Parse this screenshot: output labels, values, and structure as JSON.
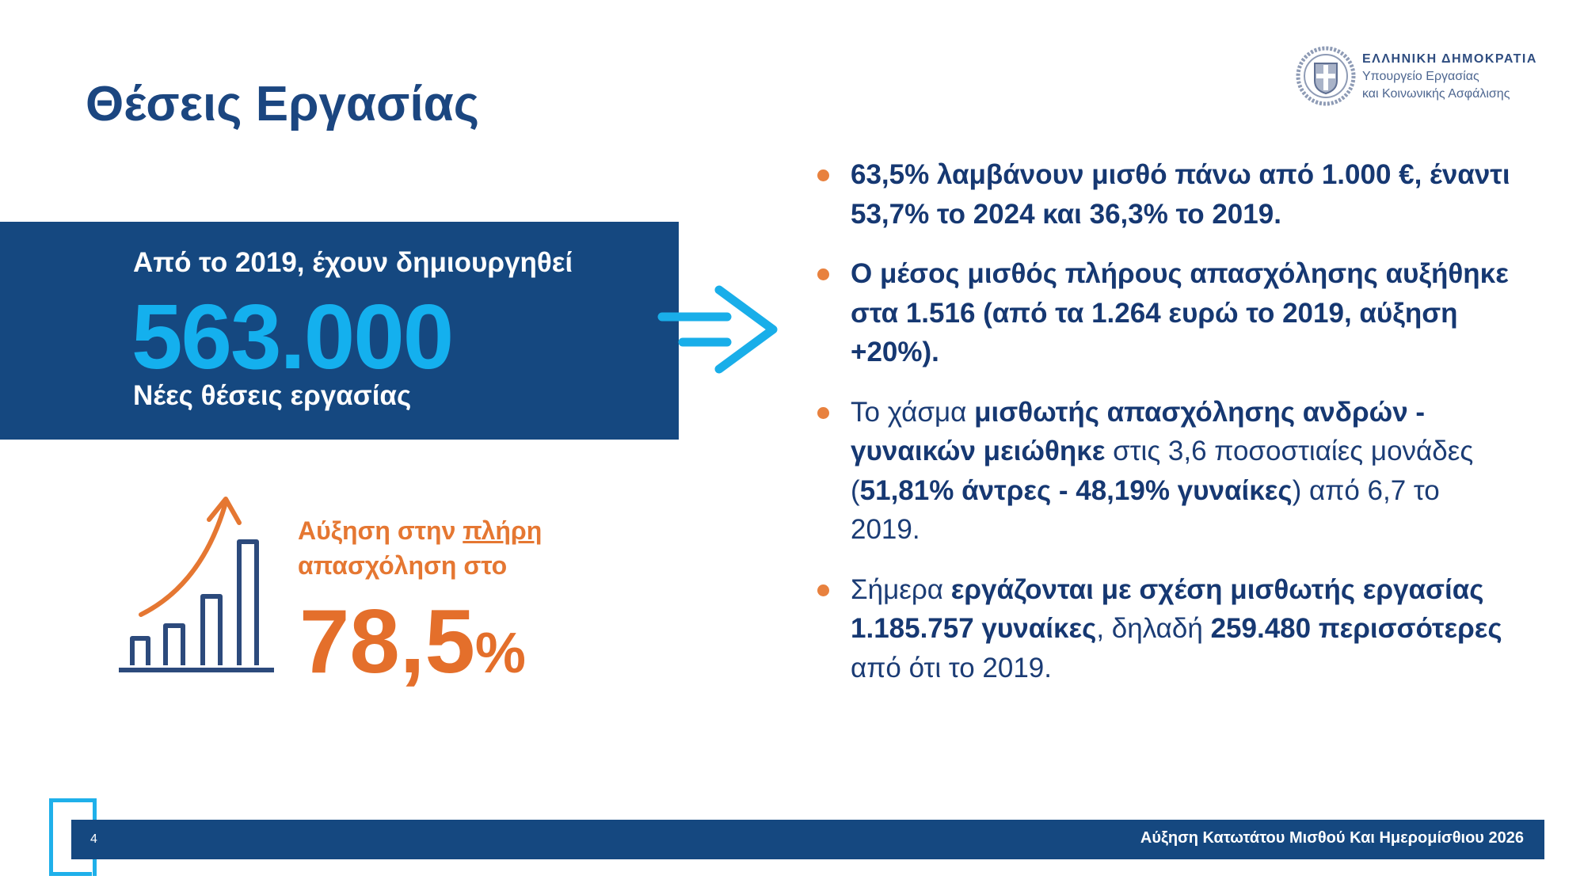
{
  "title": "Θέσεις Εργασίας",
  "logo": {
    "line1": "ΕΛΛΗΝΙΚΗ ΔΗΜΟΚΡΑΤΙΑ",
    "line2": "Υπουργείο Εργασίας",
    "line3": "και Κοινωνικής Ασφάλισης"
  },
  "jobs": {
    "intro": "Από το 2019, έχουν δημιουργηθεί",
    "number": "563.000",
    "caption": "Νέες θέσεις εργασίας"
  },
  "growth": {
    "label_start": "Αύξηση στην ",
    "label_underlined": "πλήρη",
    "label_end": "απασχόληση στο",
    "value": "78,5",
    "unit": "%"
  },
  "bullets": [
    {
      "parts": [
        {
          "text": "63,5% λαμβάνουν μισθό πάνω από 1.000 €, έναντι 53,7% το 2024 και 36,3% το 2019.",
          "bold": true
        }
      ]
    },
    {
      "parts": [
        {
          "text": "Ο μέσος μισθός πλήρους απασχόλησης αυξήθηκε στα 1.516 (από τα 1.264 ευρώ το 2019, αύξηση +20%).",
          "bold": true
        }
      ]
    },
    {
      "parts": [
        {
          "text": "Το χάσμα ",
          "bold": false
        },
        {
          "text": "μισθωτής απασχόλησης ανδρών - γυναικών μειώθηκε",
          "bold": true
        },
        {
          "text": " στις 3,6 ποσοστιαίες μονάδες (",
          "bold": false
        },
        {
          "text": "51,81% άντρες - 48,19% γυναίκες",
          "bold": true
        },
        {
          "text": ") από 6,7 το 2019.",
          "bold": false
        }
      ]
    },
    {
      "parts": [
        {
          "text": "Σήμερα ",
          "bold": false
        },
        {
          "text": "εργάζονται με σχέση μισθωτής εργασίας 1.185.757 γυναίκες",
          "bold": true
        },
        {
          "text": ", δηλαδή ",
          "bold": false
        },
        {
          "text": "259.480 περισσότερες",
          "bold": true
        },
        {
          "text": " από ότι το 2019.",
          "bold": false
        }
      ]
    }
  ],
  "footer": {
    "page_number": "4",
    "title": "Αύξηση Κατωτάτου Μισθού Και Ημερομίσθιου 2026"
  },
  "colors": {
    "navy": "#154880",
    "cyan": "#14b0ee",
    "orange": "#e46f2b"
  },
  "icons": [
    "greek-coat-of-arms-seal-icon",
    "right-arrow-icon",
    "growth-chart-icon"
  ]
}
